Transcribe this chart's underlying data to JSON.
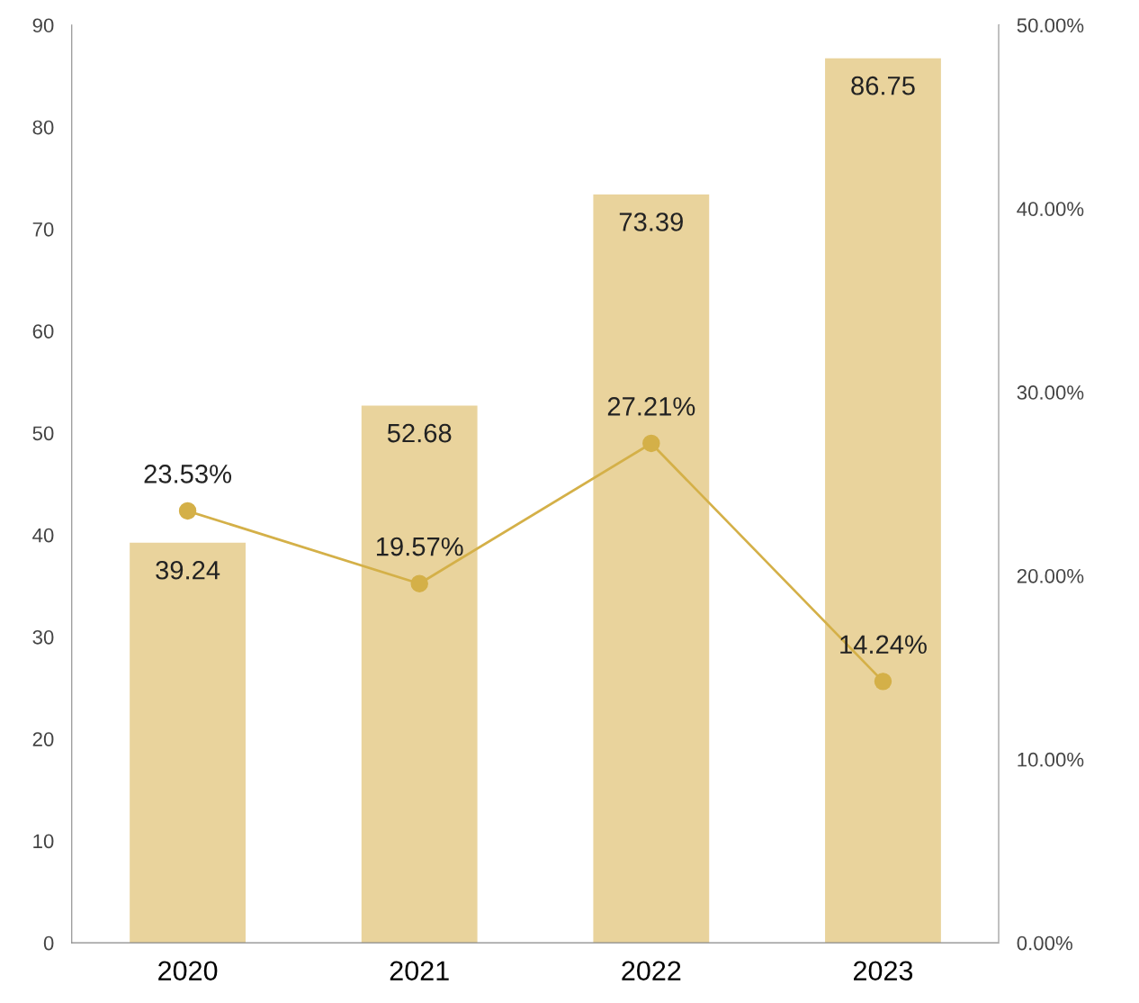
{
  "chart_data": {
    "type": "bar",
    "categories": [
      "2020",
      "2021",
      "2022",
      "2023"
    ],
    "series": [
      {
        "color": "#e9d39c",
        "values": [
          39.24,
          52.68,
          73.39,
          86.75
        ],
        "data_labels": true
      },
      {
        "type": "line",
        "axis": "y2",
        "color": "#d4b048",
        "values": [
          23.53,
          19.57,
          27.21,
          14.24
        ],
        "value_labels": [
          "23.53%",
          "19.57%",
          "27.21%",
          "14.24%"
        ],
        "marker": "circle",
        "line_style": "solid"
      }
    ],
    "ylim": [
      0,
      90
    ],
    "yticks": [
      0,
      10,
      20,
      30,
      40,
      50,
      60,
      70,
      80,
      90
    ],
    "y2lim": [
      0,
      50
    ],
    "y2ticks": [
      {
        "value": 0,
        "label": "0.00%"
      },
      {
        "value": 10,
        "label": "10.00%"
      },
      {
        "value": 20,
        "label": "20.00%"
      },
      {
        "value": 30,
        "label": "30.00%"
      },
      {
        "value": 40,
        "label": "40.00%"
      },
      {
        "value": 50,
        "label": "50.00%"
      }
    ],
    "grid": false
  }
}
